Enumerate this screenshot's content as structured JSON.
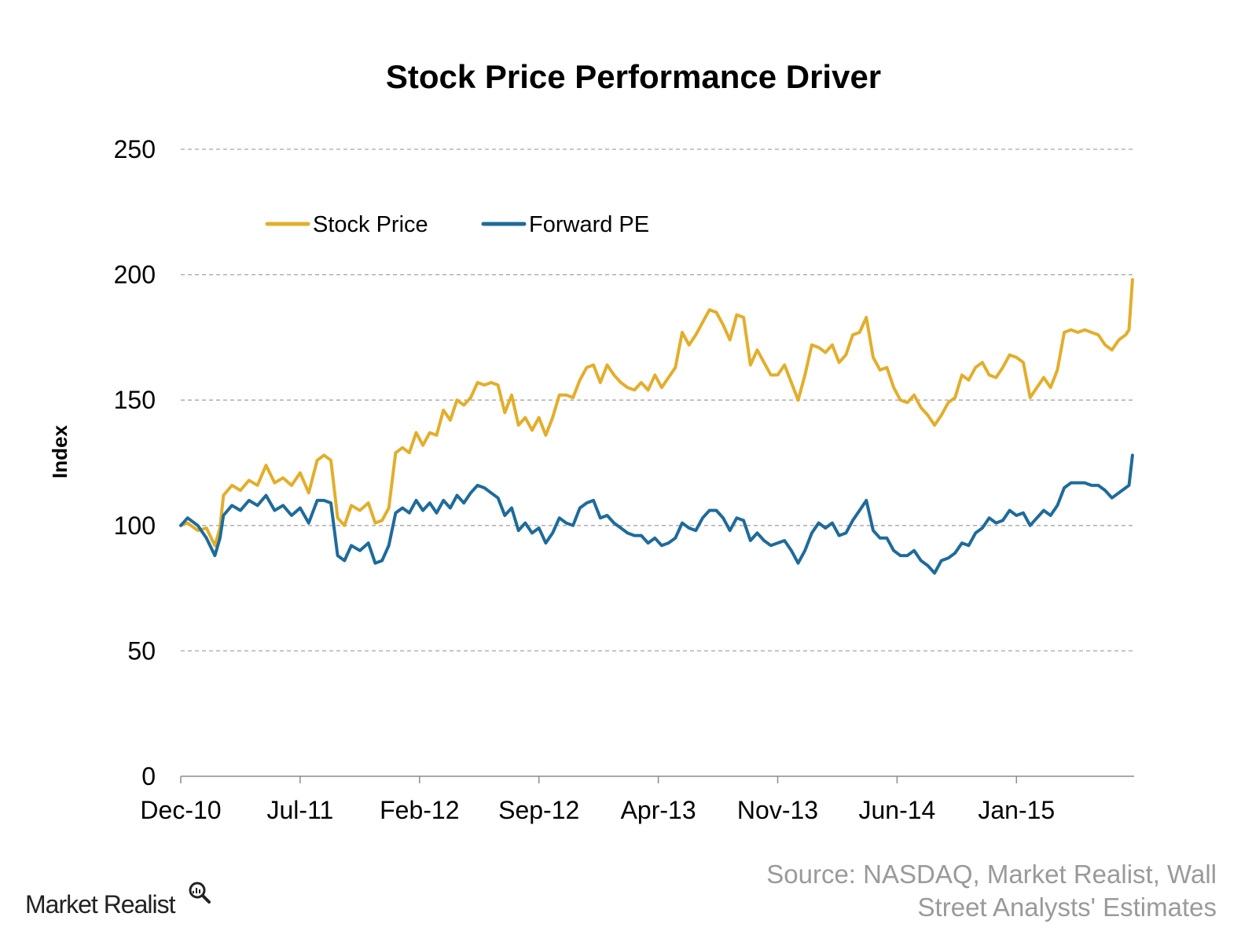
{
  "chart_data": {
    "type": "line",
    "title": "Stock Price Performance Driver",
    "ylabel": "Index",
    "xlabel": "",
    "ylim": [
      0,
      250
    ],
    "xlim": [
      0,
      56
    ],
    "yticks": [
      0,
      50,
      100,
      150,
      200,
      250
    ],
    "grid": true,
    "legend_position": "top-left",
    "x_tick_labels": [
      {
        "x": 0,
        "label": "Dec-10"
      },
      {
        "x": 7,
        "label": "Jul-11"
      },
      {
        "x": 14,
        "label": "Feb-12"
      },
      {
        "x": 21,
        "label": "Sep-12"
      },
      {
        "x": 28,
        "label": "Apr-13"
      },
      {
        "x": 35,
        "label": "Nov-13"
      },
      {
        "x": 42,
        "label": "Jun-14"
      },
      {
        "x": 49,
        "label": "Jan-15"
      }
    ],
    "x_unit": "months since Dec-10",
    "series": [
      {
        "name": "Stock Price",
        "color": "#e2ae2c",
        "points": [
          [
            0,
            100
          ],
          [
            0.4,
            101
          ],
          [
            1,
            98
          ],
          [
            1.5,
            99
          ],
          [
            2,
            92
          ],
          [
            2.3,
            99
          ],
          [
            2.5,
            112
          ],
          [
            3,
            116
          ],
          [
            3.5,
            114
          ],
          [
            4,
            118
          ],
          [
            4.5,
            116
          ],
          [
            5,
            124
          ],
          [
            5.5,
            117
          ],
          [
            6,
            119
          ],
          [
            6.5,
            116
          ],
          [
            7,
            121
          ],
          [
            7.5,
            113
          ],
          [
            8,
            126
          ],
          [
            8.4,
            128
          ],
          [
            8.8,
            126
          ],
          [
            9.2,
            103
          ],
          [
            9.6,
            100
          ],
          [
            10,
            108
          ],
          [
            10.5,
            106
          ],
          [
            11,
            109
          ],
          [
            11.4,
            101
          ],
          [
            11.8,
            102
          ],
          [
            12.2,
            107
          ],
          [
            12.6,
            129
          ],
          [
            13,
            131
          ],
          [
            13.4,
            129
          ],
          [
            13.8,
            137
          ],
          [
            14.2,
            132
          ],
          [
            14.6,
            137
          ],
          [
            15,
            136
          ],
          [
            15.4,
            146
          ],
          [
            15.8,
            142
          ],
          [
            16.2,
            150
          ],
          [
            16.6,
            148
          ],
          [
            17,
            151
          ],
          [
            17.4,
            157
          ],
          [
            17.8,
            156
          ],
          [
            18.2,
            157
          ],
          [
            18.6,
            156
          ],
          [
            19,
            145
          ],
          [
            19.4,
            152
          ],
          [
            19.8,
            140
          ],
          [
            20.2,
            143
          ],
          [
            20.6,
            138
          ],
          [
            21,
            143
          ],
          [
            21.4,
            136
          ],
          [
            21.8,
            143
          ],
          [
            22.2,
            152
          ],
          [
            22.6,
            152
          ],
          [
            23,
            151
          ],
          [
            23.4,
            158
          ],
          [
            23.8,
            163
          ],
          [
            24.2,
            164
          ],
          [
            24.6,
            157
          ],
          [
            25,
            164
          ],
          [
            25.4,
            160
          ],
          [
            25.8,
            157
          ],
          [
            26.2,
            155
          ],
          [
            26.6,
            154
          ],
          [
            27,
            157
          ],
          [
            27.4,
            154
          ],
          [
            27.8,
            160
          ],
          [
            28.2,
            155
          ],
          [
            28.6,
            159
          ],
          [
            29,
            163
          ],
          [
            29.4,
            177
          ],
          [
            29.8,
            172
          ],
          [
            30.2,
            176
          ],
          [
            30.6,
            181
          ],
          [
            31,
            186
          ],
          [
            31.4,
            185
          ],
          [
            31.8,
            180
          ],
          [
            32.2,
            174
          ],
          [
            32.6,
            184
          ],
          [
            33,
            183
          ],
          [
            33.4,
            164
          ],
          [
            33.8,
            170
          ],
          [
            34.2,
            165
          ],
          [
            34.6,
            160
          ],
          [
            35,
            160
          ],
          [
            35.4,
            164
          ],
          [
            35.8,
            157
          ],
          [
            36.2,
            150
          ],
          [
            36.6,
            160
          ],
          [
            37,
            172
          ],
          [
            37.4,
            171
          ],
          [
            37.8,
            169
          ],
          [
            38.2,
            172
          ],
          [
            38.6,
            165
          ],
          [
            39,
            168
          ],
          [
            39.4,
            176
          ],
          [
            39.8,
            177
          ],
          [
            40.2,
            183
          ],
          [
            40.6,
            167
          ],
          [
            41,
            162
          ],
          [
            41.4,
            163
          ],
          [
            41.8,
            155
          ],
          [
            42.2,
            150
          ],
          [
            42.6,
            149
          ],
          [
            43,
            152
          ],
          [
            43.4,
            147
          ],
          [
            43.8,
            144
          ],
          [
            44.2,
            140
          ],
          [
            44.6,
            144
          ],
          [
            45,
            149
          ],
          [
            45.4,
            151
          ],
          [
            45.8,
            160
          ],
          [
            46.2,
            158
          ],
          [
            46.6,
            163
          ],
          [
            47,
            165
          ],
          [
            47.4,
            160
          ],
          [
            47.8,
            159
          ],
          [
            48.2,
            163
          ],
          [
            48.6,
            168
          ],
          [
            49,
            167
          ],
          [
            49.4,
            165
          ],
          [
            49.8,
            151
          ],
          [
            50.2,
            155
          ],
          [
            50.6,
            159
          ],
          [
            51,
            155
          ],
          [
            51.4,
            162
          ],
          [
            51.8,
            177
          ],
          [
            52.2,
            178
          ],
          [
            52.6,
            177
          ],
          [
            53,
            178
          ],
          [
            53.4,
            177
          ],
          [
            53.8,
            176
          ],
          [
            54.2,
            172
          ],
          [
            54.6,
            170
          ],
          [
            55,
            174
          ],
          [
            55.4,
            176
          ],
          [
            55.6,
            178
          ],
          [
            55.8,
            198
          ]
        ]
      },
      {
        "name": "Forward PE",
        "color": "#1f6b9a",
        "points": [
          [
            0,
            100
          ],
          [
            0.4,
            103
          ],
          [
            1,
            100
          ],
          [
            1.5,
            95
          ],
          [
            2,
            88
          ],
          [
            2.3,
            95
          ],
          [
            2.5,
            104
          ],
          [
            3,
            108
          ],
          [
            3.5,
            106
          ],
          [
            4,
            110
          ],
          [
            4.5,
            108
          ],
          [
            5,
            112
          ],
          [
            5.5,
            106
          ],
          [
            6,
            108
          ],
          [
            6.5,
            104
          ],
          [
            7,
            107
          ],
          [
            7.5,
            101
          ],
          [
            8,
            110
          ],
          [
            8.4,
            110
          ],
          [
            8.8,
            109
          ],
          [
            9.2,
            88
          ],
          [
            9.6,
            86
          ],
          [
            10,
            92
          ],
          [
            10.5,
            90
          ],
          [
            11,
            93
          ],
          [
            11.4,
            85
          ],
          [
            11.8,
            86
          ],
          [
            12.2,
            92
          ],
          [
            12.6,
            105
          ],
          [
            13,
            107
          ],
          [
            13.4,
            105
          ],
          [
            13.8,
            110
          ],
          [
            14.2,
            106
          ],
          [
            14.6,
            109
          ],
          [
            15,
            105
          ],
          [
            15.4,
            110
          ],
          [
            15.8,
            107
          ],
          [
            16.2,
            112
          ],
          [
            16.6,
            109
          ],
          [
            17,
            113
          ],
          [
            17.4,
            116
          ],
          [
            17.8,
            115
          ],
          [
            18.2,
            113
          ],
          [
            18.6,
            111
          ],
          [
            19,
            104
          ],
          [
            19.4,
            107
          ],
          [
            19.8,
            98
          ],
          [
            20.2,
            101
          ],
          [
            20.6,
            97
          ],
          [
            21,
            99
          ],
          [
            21.4,
            93
          ],
          [
            21.8,
            97
          ],
          [
            22.2,
            103
          ],
          [
            22.6,
            101
          ],
          [
            23,
            100
          ],
          [
            23.4,
            107
          ],
          [
            23.8,
            109
          ],
          [
            24.2,
            110
          ],
          [
            24.6,
            103
          ],
          [
            25,
            104
          ],
          [
            25.4,
            101
          ],
          [
            25.8,
            99
          ],
          [
            26.2,
            97
          ],
          [
            26.6,
            96
          ],
          [
            27,
            96
          ],
          [
            27.4,
            93
          ],
          [
            27.8,
            95
          ],
          [
            28.2,
            92
          ],
          [
            28.6,
            93
          ],
          [
            29,
            95
          ],
          [
            29.4,
            101
          ],
          [
            29.8,
            99
          ],
          [
            30.2,
            98
          ],
          [
            30.6,
            103
          ],
          [
            31,
            106
          ],
          [
            31.4,
            106
          ],
          [
            31.8,
            103
          ],
          [
            32.2,
            98
          ],
          [
            32.6,
            103
          ],
          [
            33,
            102
          ],
          [
            33.4,
            94
          ],
          [
            33.8,
            97
          ],
          [
            34.2,
            94
          ],
          [
            34.6,
            92
          ],
          [
            35,
            93
          ],
          [
            35.4,
            94
          ],
          [
            35.8,
            90
          ],
          [
            36.2,
            85
          ],
          [
            36.6,
            90
          ],
          [
            37,
            97
          ],
          [
            37.4,
            101
          ],
          [
            37.8,
            99
          ],
          [
            38.2,
            101
          ],
          [
            38.6,
            96
          ],
          [
            39,
            97
          ],
          [
            39.4,
            102
          ],
          [
            39.8,
            106
          ],
          [
            40.2,
            110
          ],
          [
            40.6,
            98
          ],
          [
            41,
            95
          ],
          [
            41.4,
            95
          ],
          [
            41.8,
            90
          ],
          [
            42.2,
            88
          ],
          [
            42.6,
            88
          ],
          [
            43,
            90
          ],
          [
            43.4,
            86
          ],
          [
            43.8,
            84
          ],
          [
            44.2,
            81
          ],
          [
            44.6,
            86
          ],
          [
            45,
            87
          ],
          [
            45.4,
            89
          ],
          [
            45.8,
            93
          ],
          [
            46.2,
            92
          ],
          [
            46.6,
            97
          ],
          [
            47,
            99
          ],
          [
            47.4,
            103
          ],
          [
            47.8,
            101
          ],
          [
            48.2,
            102
          ],
          [
            48.6,
            106
          ],
          [
            49,
            104
          ],
          [
            49.4,
            105
          ],
          [
            49.8,
            100
          ],
          [
            50.2,
            103
          ],
          [
            50.6,
            106
          ],
          [
            51,
            104
          ],
          [
            51.4,
            108
          ],
          [
            51.8,
            115
          ],
          [
            52.2,
            117
          ],
          [
            52.6,
            117
          ],
          [
            53,
            117
          ],
          [
            53.4,
            116
          ],
          [
            53.8,
            116
          ],
          [
            54.2,
            114
          ],
          [
            54.6,
            111
          ],
          [
            55,
            113
          ],
          [
            55.4,
            115
          ],
          [
            55.6,
            116
          ],
          [
            55.8,
            128
          ]
        ]
      }
    ]
  },
  "source": {
    "line1": "Source: NASDAQ, Market Realist, Wall",
    "line2": "Street Analysts' Estimates"
  },
  "logo": {
    "text": "Market Realist"
  }
}
